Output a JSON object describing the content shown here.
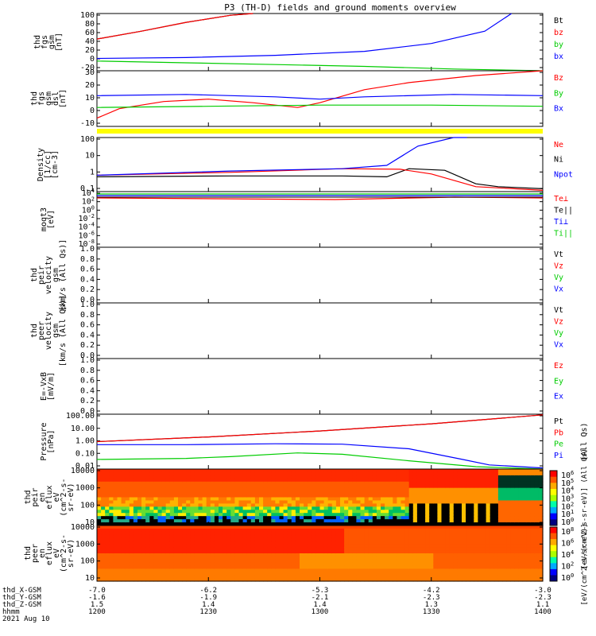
{
  "title": "P3 (TH-D) fields and ground moments overview",
  "colors": {
    "black": "#000000",
    "red": "#ff0000",
    "green": "#00cc00",
    "blue": "#0000ff",
    "yellow": "#ffff00"
  },
  "chart_data": {
    "type": "line",
    "x_axis": {
      "rows": [
        {
          "name": "thd_X-GSM",
          "values": [
            "-7.0",
            "-6.2",
            "-5.3",
            "-4.2",
            "-3.0"
          ]
        },
        {
          "name": "thd_Y-GSM",
          "values": [
            "-1.6",
            "-1.9",
            "-2.1",
            "-2.3",
            "-2.3"
          ]
        },
        {
          "name": "thd_Z-GSM",
          "values": [
            "1.5",
            "1.4",
            "1.4",
            "1.3",
            "1.1"
          ]
        },
        {
          "name": "hhmm",
          "values": [
            "1200",
            "1230",
            "1300",
            "1330",
            "1400"
          ]
        }
      ],
      "date": "2021 Aug 10"
    },
    "panels": [
      {
        "id": "fgs-gsm",
        "ylabel": [
          "thd",
          "fgs",
          "gsm",
          "[nT]"
        ],
        "ylim": [
          -30,
          100
        ],
        "ticks": [
          "100",
          "80",
          "60",
          "40",
          "20",
          "0",
          "-20"
        ],
        "legend": [
          {
            "label": "Bt",
            "color": "black"
          },
          {
            "label": "bz",
            "color": "red"
          },
          {
            "label": "by",
            "color": "green"
          },
          {
            "label": "bx",
            "color": "blue"
          }
        ],
        "series": [
          {
            "name": "Bt",
            "color": "black",
            "x": [
              0,
              0.1,
              0.2,
              0.3,
              0.35
            ],
            "y": [
              42,
              60,
              80,
              96,
              100
            ]
          },
          {
            "name": "bz",
            "color": "red",
            "x": [
              0,
              0.1,
              0.2,
              0.3,
              0.35
            ],
            "y": [
              42,
              60,
              80,
              96,
              100
            ]
          },
          {
            "name": "by",
            "color": "green",
            "x": [
              0,
              0.2,
              0.4,
              0.6,
              0.8,
              1
            ],
            "y": [
              -8,
              -12,
              -16,
              -20,
              -26,
              -30
            ]
          },
          {
            "name": "bx",
            "color": "blue",
            "x": [
              0,
              0.2,
              0.4,
              0.6,
              0.75,
              0.87,
              0.93
            ],
            "y": [
              -2,
              0,
              5,
              14,
              32,
              60,
              100
            ]
          }
        ]
      },
      {
        "id": "fgs-gsm-dsl",
        "ylabel": [
          "thd",
          "fgs",
          "gsm",
          "dsl",
          "[nT]"
        ],
        "ylim": [
          -15,
          32
        ],
        "ticks": [
          "30",
          "20",
          "10",
          "0",
          "-10"
        ],
        "legend": [
          {
            "label": "Bz",
            "color": "red"
          },
          {
            "label": "By",
            "color": "green"
          },
          {
            "label": "Bx",
            "color": "blue"
          }
        ],
        "series": [
          {
            "name": "Bz",
            "color": "red",
            "x": [
              0,
              0.05,
              0.15,
              0.25,
              0.35,
              0.45,
              0.5,
              0.6,
              0.7,
              0.85,
              1
            ],
            "y": [
              -8,
              0,
              6,
              8,
              5,
              1,
              5,
              16,
              22,
              28,
              32
            ]
          },
          {
            "name": "By",
            "color": "green",
            "x": [
              0,
              0.25,
              0.5,
              0.75,
              1
            ],
            "y": [
              1,
              2,
              3,
              3,
              2
            ]
          },
          {
            "name": "Bx",
            "color": "blue",
            "x": [
              0,
              0.2,
              0.4,
              0.5,
              0.6,
              0.8,
              1
            ],
            "y": [
              11,
              12,
              10,
              8,
              10,
              12,
              11
            ]
          }
        ]
      },
      {
        "id": "density",
        "ylabel": [
          "Density",
          "[1/cc]",
          "[cm-3]"
        ],
        "ylim": [
          0.1,
          200
        ],
        "log": true,
        "ticks": [
          "100",
          "10",
          "1",
          "0.1"
        ],
        "legend": [
          {
            "label": "Ne",
            "color": "red"
          },
          {
            "label": "Ni",
            "color": "black"
          },
          {
            "label": "Npot",
            "color": "blue"
          }
        ],
        "series": [
          {
            "name": "Ni",
            "color": "black",
            "x": [
              0,
              0.3,
              0.55,
              0.65,
              0.7,
              0.78,
              0.85,
              0.9,
              1
            ],
            "y": [
              0.8,
              0.9,
              0.9,
              0.8,
              2.5,
              2.0,
              0.3,
              0.2,
              0.15
            ]
          },
          {
            "name": "Ne",
            "color": "red",
            "x": [
              0,
              0.3,
              0.55,
              0.68,
              0.75,
              0.85,
              1
            ],
            "y": [
              1.0,
              1.5,
              2.5,
              2.3,
              1.2,
              0.2,
              0.12
            ]
          },
          {
            "name": "Npot",
            "color": "blue",
            "x": [
              0,
              0.3,
              0.55,
              0.65,
              0.72,
              0.8,
              0.83
            ],
            "y": [
              1.0,
              1.8,
              2.5,
              4,
              60,
              200,
              200
            ]
          }
        ]
      },
      {
        "id": "moqt3",
        "ylabel": [
          "moqt3",
          "[eV]"
        ],
        "ylim": [
          1e-08,
          100000.0
        ],
        "log": true,
        "ticks": [
          "10^4",
          "10^2",
          "10^0",
          "10^-2",
          "10^-4",
          "10^-6",
          "10^-8"
        ],
        "legend": [
          {
            "label": "Te⊥",
            "color": "red"
          },
          {
            "label": "Te||",
            "color": "black"
          },
          {
            "label": "Ti⊥",
            "color": "blue"
          },
          {
            "label": "Ti||",
            "color": "green"
          }
        ],
        "series": []
      },
      {
        "id": "peir-velocity",
        "ylabel": [
          "thd",
          "peir",
          "velocity",
          "gsm",
          "[km/s (All Qs)]"
        ],
        "ylim": [
          0,
          1
        ],
        "ticks": [
          "1.0",
          "0.8",
          "0.6",
          "0.4",
          "0.2",
          "0.0"
        ],
        "legend": [
          {
            "label": "Vt",
            "color": "black"
          },
          {
            "label": "Vz",
            "color": "red"
          },
          {
            "label": "Vy",
            "color": "green"
          },
          {
            "label": "Vx",
            "color": "blue"
          }
        ],
        "series": []
      },
      {
        "id": "peer-velocity",
        "ylabel": [
          "thd",
          "peer",
          "velocity",
          "gsm",
          "[km/s (All Qs)]"
        ],
        "ylim": [
          0,
          1
        ],
        "ticks": [
          "1.0",
          "0.8",
          "0.6",
          "0.4",
          "0.2",
          "0.0"
        ],
        "legend": [
          {
            "label": "Vt",
            "color": "black"
          },
          {
            "label": "Vz",
            "color": "red"
          },
          {
            "label": "Vy",
            "color": "green"
          },
          {
            "label": "Vx",
            "color": "blue"
          }
        ],
        "series": []
      },
      {
        "id": "e-field",
        "ylabel": [
          "E=-VxB",
          "[mV/m]"
        ],
        "ylim": [
          0,
          1
        ],
        "ticks": [
          "1.0",
          "0.8",
          "0.6",
          "0.4",
          "0.2",
          "0.0"
        ],
        "legend": [
          {
            "label": "Ez",
            "color": "red"
          },
          {
            "label": "Ey",
            "color": "green"
          },
          {
            "label": "Ex",
            "color": "blue"
          }
        ],
        "series": []
      },
      {
        "id": "pressure",
        "ylabel": [
          "Pressure",
          "[nPa]"
        ],
        "ylim": [
          0.01,
          100
        ],
        "log": true,
        "ticks": [
          "100.00",
          "10.00",
          "1.00",
          "0.10",
          "0.01"
        ],
        "legend": [
          {
            "label": "Pt",
            "color": "black"
          },
          {
            "label": "Pb",
            "color": "red"
          },
          {
            "label": "Pe",
            "color": "green"
          },
          {
            "label": "Pi",
            "color": "blue"
          }
        ],
        "side_label": "(All Qs)",
        "series": [
          {
            "name": "Pt",
            "color": "black",
            "x": [
              0,
              0.25,
              0.5,
              0.75,
              1
            ],
            "y": [
              1.0,
              2.2,
              6,
              20,
              90
            ]
          },
          {
            "name": "Pb",
            "color": "red",
            "x": [
              0,
              0.25,
              0.5,
              0.75,
              1
            ],
            "y": [
              1.0,
              2.2,
              6,
              20,
              90
            ]
          },
          {
            "name": "Pi",
            "color": "blue",
            "x": [
              0,
              0.2,
              0.4,
              0.55,
              0.7,
              0.82,
              0.88,
              1
            ],
            "y": [
              0.6,
              0.6,
              0.7,
              0.65,
              0.3,
              0.05,
              0.02,
              0.012
            ]
          },
          {
            "name": "Pe",
            "color": "green",
            "x": [
              0,
              0.2,
              0.3,
              0.45,
              0.55,
              0.7,
              0.85,
              1
            ],
            "y": [
              0.05,
              0.06,
              0.08,
              0.15,
              0.12,
              0.04,
              0.015,
              0.01
            ]
          }
        ]
      },
      {
        "id": "peir-en-eflux",
        "type": "heatmap",
        "ylabel": [
          "thd",
          "peir",
          "en",
          "eflux",
          "eV",
          "(cm^2-s-",
          "sr-eV)"
        ],
        "ylim": [
          5,
          20000
        ],
        "log": true,
        "ticks": [
          "10000",
          "1000",
          "100",
          "10"
        ],
        "colorbar_ticks": [
          "10^6",
          "10^5",
          "10^4",
          "10^3",
          "10^2",
          "10^1",
          "10^0"
        ]
      },
      {
        "id": "peer-en-eflux",
        "type": "heatmap",
        "ylabel": [
          "thd",
          "peer",
          "en",
          "eflux",
          "eV",
          "(cm^2-s-",
          "sr-eV)"
        ],
        "ylim": [
          5,
          20000
        ],
        "log": true,
        "ticks": [
          "10000",
          "1000",
          "100",
          "10"
        ],
        "colorbar_ticks": [
          "10^8",
          "10^6",
          "10^4",
          "10^2",
          "10^0"
        ]
      }
    ],
    "colorbar_label": "[eV/(cm^2-s-sr-eV)] (All Qs)",
    "colorbar_label_2": "[eV/(cm^2-s-sr-eV)]"
  }
}
